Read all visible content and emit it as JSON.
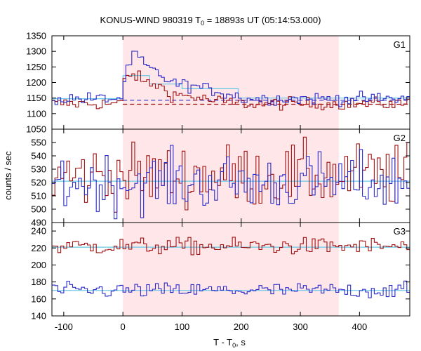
{
  "chart_data": {
    "type": "line",
    "title": "KONUS-WIND 980319 T",
    "title_sub": "0",
    "title_rest": " = 18893s UT (05:14:53.000)",
    "xlabel_main": "T - T",
    "xlabel_sub": "0",
    "xlabel_unit": ", s",
    "ylabel": "counts / sec",
    "xlim": [
      -120,
      485
    ],
    "xticks": [
      "-100",
      "0",
      "100",
      "200",
      "300",
      "400"
    ],
    "xtick_values": [
      -100,
      0,
      100,
      200,
      300,
      400
    ],
    "shaded_interval": [
      0,
      365
    ],
    "colors": {
      "red": "#a01010",
      "blue": "#2b2bc8",
      "light_blue": "#66c8e8",
      "shade": "#ffe6e8"
    },
    "panels": [
      {
        "label": "G1",
        "ylim": [
          1050,
          1350
        ],
        "yticks": [
          1050,
          1100,
          1150,
          1200,
          1250,
          1300,
          1350
        ],
        "ytick_labels": [
          "1050",
          "1100",
          "1150",
          "1200",
          "1250",
          "1300",
          "1350"
        ],
        "bin_width": 5,
        "series": [
          {
            "color": "red",
            "bg": 1132,
            "noise": 10,
            "profile": [
              [
                0,
                0
              ],
              [
                2,
                75
              ],
              [
                12,
                95
              ],
              [
                22,
                90
              ],
              [
                40,
                65
              ],
              [
                60,
                60
              ],
              [
                80,
                30
              ],
              [
                110,
                25
              ],
              [
                150,
                10
              ],
              [
                200,
                0
              ]
            ]
          },
          {
            "color": "blue",
            "bg": 1148,
            "noise": 10,
            "profile": [
              [
                0,
                0
              ],
              [
                2,
                60
              ],
              [
                20,
                150
              ],
              [
                35,
                110
              ],
              [
                55,
                85
              ],
              [
                85,
                50
              ],
              [
                120,
                40
              ],
              [
                170,
                20
              ],
              [
                200,
                5
              ]
            ]
          }
        ],
        "model_lines": [
          {
            "color": "red",
            "dashed": true,
            "y": 1130,
            "from": 0,
            "to": 485
          },
          {
            "color": "blue",
            "dashed": true,
            "y": 1143,
            "from": 0,
            "to": 485
          },
          {
            "color": "light_blue",
            "dashed": false,
            "y": 1148,
            "steps": [
              [
                -120,
                1148
              ],
              [
                0,
                1148
              ],
              [
                0,
                1222
              ],
              [
                45,
                1222
              ],
              [
                45,
                1195
              ],
              [
                100,
                1195
              ],
              [
                100,
                1180
              ],
              [
                195,
                1180
              ],
              [
                195,
                1150
              ],
              [
                485,
                1150
              ]
            ]
          }
        ]
      },
      {
        "label": "G2",
        "ylim": [
          490,
          560
        ],
        "yticks": [
          490,
          500,
          510,
          520,
          530,
          540,
          550
        ],
        "ytick_labels": [
          "490",
          "500",
          "510",
          "520",
          "530",
          "540",
          "550"
        ],
        "bin_width": 5,
        "series": [
          {
            "color": "red",
            "bg": 525,
            "noise": 12,
            "profile": []
          },
          {
            "color": "blue",
            "bg": 520,
            "noise": 11,
            "profile": []
          }
        ],
        "model_lines": [
          {
            "color": "light_blue",
            "dashed": false,
            "y": 521,
            "from": -120,
            "to": 485
          }
        ]
      },
      {
        "label": "G3",
        "ylim": [
          140,
          250
        ],
        "yticks": [
          140,
          160,
          180,
          200,
          220,
          240
        ],
        "ytick_labels": [
          "140",
          "160",
          "180",
          "200",
          "220",
          "240"
        ],
        "bin_width": 5,
        "series": [
          {
            "color": "red",
            "bg": 222,
            "noise": 5,
            "profile": []
          },
          {
            "color": "blue",
            "bg": 170,
            "noise": 4.5,
            "profile": []
          }
        ],
        "model_lines": [
          {
            "color": "light_blue",
            "dashed": false,
            "y": 221,
            "from": -120,
            "to": 485
          },
          {
            "color": "light_blue",
            "dashed": false,
            "y": 170,
            "from": -120,
            "to": 485
          }
        ]
      }
    ]
  }
}
